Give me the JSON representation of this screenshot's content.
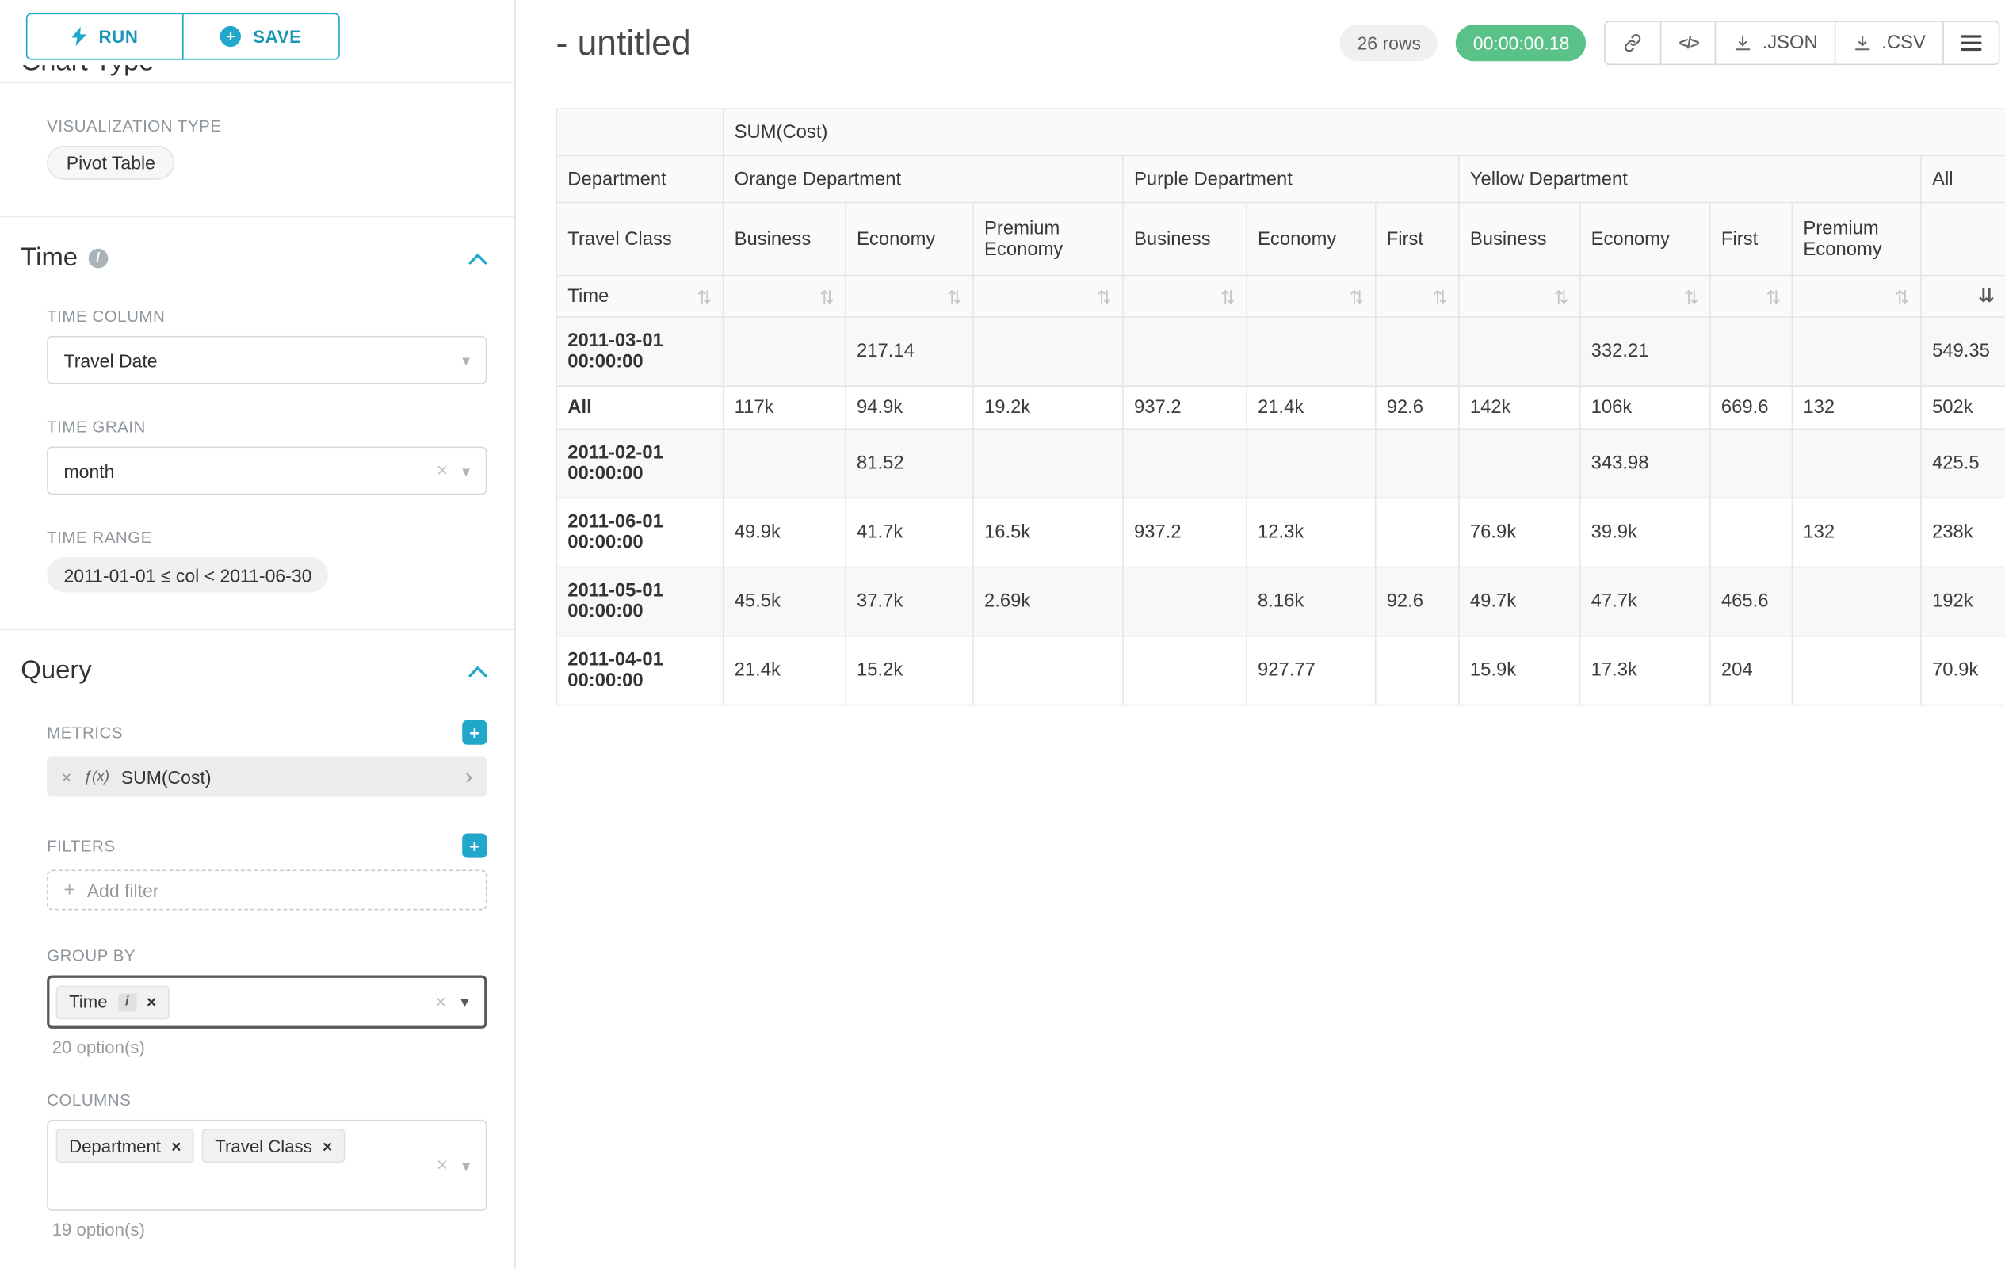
{
  "sidebar": {
    "toolbar": {
      "run_label": "RUN",
      "save_label": "SAVE"
    },
    "chart_type": {
      "heading": "Chart Type",
      "viz_type_label": "VISUALIZATION TYPE",
      "viz_type_value": "Pivot Table"
    },
    "time": {
      "heading": "Time",
      "column_label": "TIME COLUMN",
      "column_value": "Travel Date",
      "grain_label": "TIME GRAIN",
      "grain_value": "month",
      "range_label": "TIME RANGE",
      "range_value": "2011-01-01 ≤ col < 2011-06-30"
    },
    "query": {
      "heading": "Query",
      "metrics_label": "METRICS",
      "metric": {
        "fx": "ƒ(x)",
        "name": "SUM(Cost)"
      },
      "filters_label": "FILTERS",
      "add_filter": "Add filter",
      "group_by_label": "GROUP BY",
      "group_by_value": "Time",
      "group_by_options": "20 option(s)",
      "columns_label": "COLUMNS",
      "column_values": [
        "Department",
        "Travel Class"
      ],
      "columns_options": "19 option(s)"
    }
  },
  "header": {
    "title": "- untitled",
    "row_count": "26 rows",
    "timer": "00:00:00.18",
    "buttons": {
      "json": ".JSON",
      "csv": ".CSV"
    }
  },
  "chart_data": {
    "type": "table",
    "metric": "SUM(Cost)",
    "corner_labels": {
      "department": "Department",
      "travel_class": "Travel Class",
      "time": "Time"
    },
    "column_groups": [
      {
        "department": "Orange Department",
        "classes": [
          "Business",
          "Economy",
          "Premium Economy"
        ]
      },
      {
        "department": "Purple Department",
        "classes": [
          "Business",
          "Economy",
          "First"
        ]
      },
      {
        "department": "Yellow Department",
        "classes": [
          "Business",
          "Economy",
          "First",
          "Premium Economy"
        ]
      }
    ],
    "all_label": "All",
    "rows": [
      {
        "time": "2011-03-01 00:00:00",
        "values": [
          "",
          "217.14",
          "",
          "",
          "",
          "",
          "",
          "332.21",
          "",
          "",
          "549.35"
        ]
      },
      {
        "time": "All",
        "values": [
          "117k",
          "94.9k",
          "19.2k",
          "937.2",
          "21.4k",
          "92.6",
          "142k",
          "106k",
          "669.6",
          "132",
          "502k"
        ]
      },
      {
        "time": "2011-02-01 00:00:00",
        "values": [
          "",
          "81.52",
          "",
          "",
          "",
          "",
          "",
          "343.98",
          "",
          "",
          "425.5"
        ]
      },
      {
        "time": "2011-06-01 00:00:00",
        "values": [
          "49.9k",
          "41.7k",
          "16.5k",
          "937.2",
          "12.3k",
          "",
          "76.9k",
          "39.9k",
          "",
          "132",
          "238k"
        ]
      },
      {
        "time": "2011-05-01 00:00:00",
        "values": [
          "45.5k",
          "37.7k",
          "2.69k",
          "",
          "8.16k",
          "92.6",
          "49.7k",
          "47.7k",
          "465.6",
          "",
          "192k"
        ]
      },
      {
        "time": "2011-04-01 00:00:00",
        "values": [
          "21.4k",
          "15.2k",
          "",
          "",
          "927.77",
          "",
          "15.9k",
          "17.3k",
          "204",
          "",
          "70.9k"
        ]
      }
    ]
  },
  "colors": {
    "primary": "#20a7c9",
    "timer_green": "#5ac189"
  }
}
